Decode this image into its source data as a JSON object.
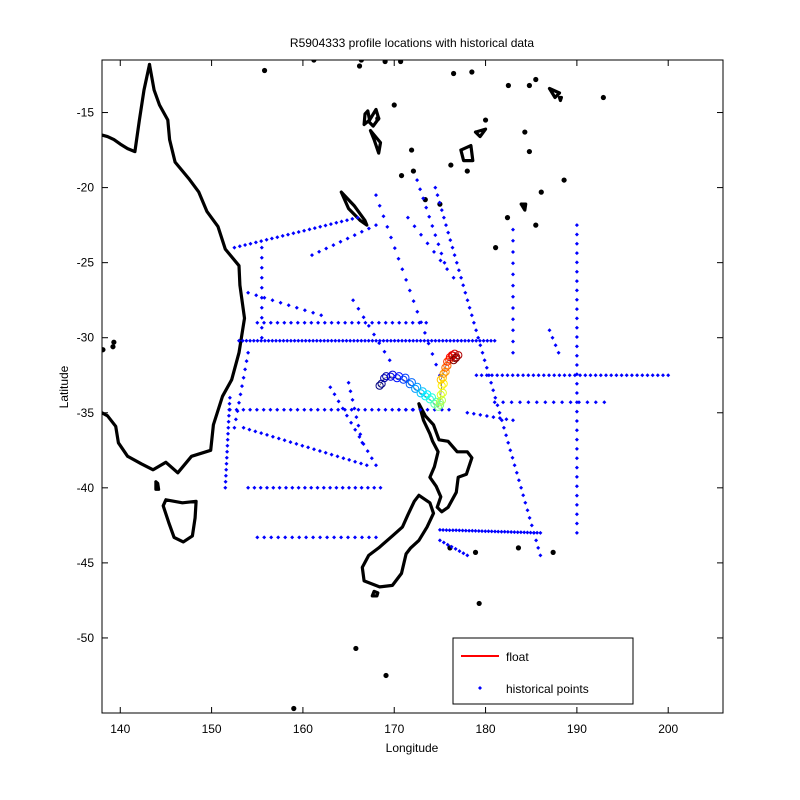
{
  "chart_data": {
    "type": "scatter",
    "title": "R5904333 profile locations with historical data",
    "xlabel": "Longitude",
    "ylabel": "Latitude",
    "xlim": [
      138,
      206
    ],
    "ylim": [
      -55,
      -11.5
    ],
    "xticks": [
      140,
      150,
      160,
      170,
      180,
      190,
      200
    ],
    "yticks": [
      -15,
      -20,
      -25,
      -30,
      -35,
      -40,
      -45,
      -50
    ],
    "grid": false,
    "legend": {
      "placement": "bottom-right",
      "entries": [
        "float",
        "historical points"
      ]
    },
    "colors": {
      "float_line": "#ff0000",
      "historical_points": "#0000ff",
      "coastline": "#000000"
    },
    "series": [
      {
        "name": "float",
        "path": [
          [
            168.4,
            -33.2
          ],
          [
            168.9,
            -32.7
          ],
          [
            169.6,
            -32.6
          ],
          [
            170.3,
            -32.7
          ],
          [
            171.0,
            -32.8
          ],
          [
            171.7,
            -33.1
          ],
          [
            172.3,
            -33.4
          ],
          [
            172.9,
            -33.7
          ],
          [
            173.4,
            -33.9
          ],
          [
            173.9,
            -34.1
          ],
          [
            174.4,
            -34.4
          ],
          [
            174.8,
            -34.6
          ],
          [
            175.0,
            -34.3
          ],
          [
            175.1,
            -33.8
          ],
          [
            175.2,
            -33.2
          ],
          [
            175.1,
            -32.8
          ],
          [
            175.4,
            -32.4
          ],
          [
            175.6,
            -32.0
          ],
          [
            175.8,
            -31.6
          ],
          [
            176.1,
            -31.3
          ],
          [
            176.4,
            -31.2
          ],
          [
            176.8,
            -31.3
          ],
          [
            176.5,
            -31.5
          ]
        ]
      },
      {
        "name": "historical points",
        "tracks": [
          {
            "from": [
              152.5,
              -24.0
            ],
            "to": [
              166.0,
              -22.0
            ],
            "n": 24
          },
          {
            "from": [
              153.0,
              -30.2
            ],
            "to": [
              181.0,
              -30.2
            ],
            "n": 70
          },
          {
            "from": [
              152.0,
              -34.8
            ],
            "to": [
              172.0,
              -34.8
            ],
            "n": 28
          },
          {
            "from": [
              153.5,
              -36.0
            ],
            "to": [
              167.0,
              -38.5
            ],
            "n": 22
          },
          {
            "from": [
              154.0,
              -40.0
            ],
            "to": [
              168.5,
              -40.0
            ],
            "n": 22
          },
          {
            "from": [
              155.0,
              -43.3
            ],
            "to": [
              168.0,
              -43.3
            ],
            "n": 18
          },
          {
            "from": [
              155.0,
              -29.0
            ],
            "to": [
              173.5,
              -29.0
            ],
            "n": 26
          },
          {
            "from": [
              163.0,
              -33.3
            ],
            "to": [
              168.0,
              -38.5
            ],
            "n": 12
          },
          {
            "from": [
              175.0,
              -42.8
            ],
            "to": [
              186.0,
              -43.0
            ],
            "n": 32
          },
          {
            "from": [
              179.0,
              -32.5
            ],
            "to": [
              200.0,
              -32.5
            ],
            "n": 38
          },
          {
            "from": [
              181.0,
              -34.3
            ],
            "to": [
              193.0,
              -34.3
            ],
            "n": 14
          },
          {
            "from": [
              190.0,
              -22.5
            ],
            "to": [
              190.0,
              -43.0
            ],
            "n": 34
          },
          {
            "from": [
              183.0,
              -22.8
            ],
            "to": [
              183.0,
              -31.0
            ],
            "n": 12
          },
          {
            "from": [
              174.5,
              -20.0
            ],
            "to": [
              186.0,
              -44.5
            ],
            "n": 50
          },
          {
            "from": [
              176.5,
              -26.0
            ],
            "to": [
              171.5,
              -22.0
            ],
            "n": 8
          },
          {
            "from": [
              161.0,
              -24.5
            ],
            "to": [
              168.0,
              -22.5
            ],
            "n": 10
          },
          {
            "from": [
              154.0,
              -27.0
            ],
            "to": [
              162.0,
              -28.5
            ],
            "n": 10
          },
          {
            "from": [
              168.0,
              -20.5
            ],
            "to": [
              175.0,
              -32.5
            ],
            "n": 18
          },
          {
            "from": [
              165.5,
              -27.5
            ],
            "to": [
              169.5,
              -31.5
            ],
            "n": 8
          },
          {
            "from": [
              152.0,
              -34.0
            ],
            "to": [
              151.5,
              -40.0
            ],
            "n": 16
          },
          {
            "from": [
              154.0,
              -31.0
            ],
            "to": [
              152.5,
              -36.0
            ],
            "n": 10
          },
          {
            "from": [
              175.0,
              -43.5
            ],
            "to": [
              178.0,
              -44.5
            ],
            "n": 8
          },
          {
            "from": [
              172.5,
              -19.5
            ],
            "to": [
              175.5,
              -25.0
            ],
            "n": 10
          },
          {
            "from": [
              165.0,
              -33.0
            ],
            "to": [
              166.5,
              -37.0
            ],
            "n": 8
          },
          {
            "from": [
              178.0,
              -35.0
            ],
            "to": [
              183.0,
              -35.5
            ],
            "n": 8
          },
          {
            "from": [
              187.0,
              -29.5
            ],
            "to": [
              188.0,
              -31.0
            ],
            "n": 4
          },
          {
            "from": [
              155.5,
              -24.0
            ],
            "to": [
              155.5,
              -30.0
            ],
            "n": 10
          },
          {
            "from": [
              170.5,
              -34.8
            ],
            "to": [
              176.0,
              -34.8
            ],
            "n": 8
          }
        ]
      }
    ],
    "coastlines": [
      [
        [
          143.2,
          -11.8
        ],
        [
          142.6,
          -13.5
        ],
        [
          142.1,
          -15.5
        ],
        [
          141.6,
          -17.6
        ],
        [
          140.8,
          -17.4
        ],
        [
          140.0,
          -17.1
        ],
        [
          139.3,
          -16.8
        ],
        [
          138.6,
          -16.6
        ],
        [
          138.0,
          -16.5
        ]
      ],
      [
        [
          143.2,
          -11.8
        ],
        [
          143.7,
          -13.5
        ],
        [
          144.3,
          -14.5
        ],
        [
          145.2,
          -15.5
        ],
        [
          145.4,
          -16.8
        ],
        [
          146.0,
          -18.3
        ],
        [
          147.5,
          -19.4
        ],
        [
          148.6,
          -20.3
        ],
        [
          149.5,
          -21.6
        ],
        [
          150.7,
          -22.6
        ],
        [
          151.5,
          -24.1
        ],
        [
          153.0,
          -25.2
        ],
        [
          153.1,
          -26.5
        ],
        [
          153.6,
          -28.7
        ],
        [
          153.0,
          -31.0
        ],
        [
          152.2,
          -32.8
        ],
        [
          151.2,
          -33.9
        ],
        [
          150.2,
          -35.8
        ],
        [
          149.9,
          -37.5
        ],
        [
          147.8,
          -37.9
        ],
        [
          146.3,
          -39.0
        ],
        [
          145.0,
          -38.3
        ],
        [
          143.6,
          -38.8
        ],
        [
          142.3,
          -38.4
        ],
        [
          140.8,
          -37.9
        ],
        [
          139.8,
          -37.0
        ],
        [
          139.5,
          -35.9
        ],
        [
          138.6,
          -35.2
        ],
        [
          138.0,
          -35.0
        ]
      ],
      [
        [
          145.0,
          -40.8
        ],
        [
          146.8,
          -41.0
        ],
        [
          148.3,
          -40.9
        ],
        [
          148.2,
          -42.0
        ],
        [
          147.9,
          -43.2
        ],
        [
          146.9,
          -43.6
        ],
        [
          145.9,
          -43.3
        ],
        [
          145.3,
          -42.3
        ],
        [
          144.7,
          -41.2
        ],
        [
          145.0,
          -40.8
        ]
      ],
      [
        [
          143.9,
          -39.6
        ],
        [
          144.1,
          -39.7
        ],
        [
          144.2,
          -40.1
        ],
        [
          143.9,
          -40.1
        ],
        [
          143.9,
          -39.6
        ]
      ],
      [
        [
          172.7,
          -34.4
        ],
        [
          173.4,
          -35.2
        ],
        [
          174.3,
          -35.8
        ],
        [
          174.9,
          -36.8
        ],
        [
          175.9,
          -36.9
        ],
        [
          176.9,
          -37.6
        ],
        [
          178.0,
          -37.6
        ],
        [
          178.5,
          -38.0
        ],
        [
          177.9,
          -39.1
        ],
        [
          177.0,
          -39.3
        ],
        [
          176.8,
          -40.3
        ],
        [
          175.9,
          -41.3
        ],
        [
          175.2,
          -41.6
        ],
        [
          174.7,
          -41.3
        ],
        [
          175.1,
          -40.6
        ],
        [
          174.6,
          -39.9
        ],
        [
          173.9,
          -39.3
        ],
        [
          174.4,
          -38.6
        ],
        [
          174.8,
          -37.6
        ],
        [
          174.2,
          -36.9
        ],
        [
          173.9,
          -36.4
        ],
        [
          173.2,
          -35.5
        ],
        [
          172.7,
          -34.4
        ]
      ],
      [
        [
          172.7,
          -40.5
        ],
        [
          173.9,
          -41.0
        ],
        [
          174.3,
          -41.7
        ],
        [
          173.6,
          -42.6
        ],
        [
          172.7,
          -43.5
        ],
        [
          171.8,
          -44.0
        ],
        [
          171.3,
          -44.4
        ],
        [
          170.8,
          -45.7
        ],
        [
          169.8,
          -46.5
        ],
        [
          168.4,
          -46.6
        ],
        [
          166.7,
          -46.2
        ],
        [
          166.5,
          -45.3
        ],
        [
          167.2,
          -44.5
        ],
        [
          168.3,
          -44.0
        ],
        [
          169.8,
          -43.2
        ],
        [
          170.9,
          -42.6
        ],
        [
          171.5,
          -41.8
        ],
        [
          172.2,
          -40.9
        ],
        [
          172.7,
          -40.5
        ]
      ],
      [
        [
          167.8,
          -46.9
        ],
        [
          168.2,
          -47.0
        ],
        [
          168.1,
          -47.2
        ],
        [
          167.6,
          -47.2
        ],
        [
          167.8,
          -46.9
        ]
      ],
      [
        [
          164.2,
          -20.3
        ],
        [
          165.6,
          -21.2
        ],
        [
          166.8,
          -22.2
        ],
        [
          167.0,
          -22.5
        ],
        [
          166.3,
          -22.2
        ],
        [
          165.0,
          -21.4
        ],
        [
          164.2,
          -20.3
        ]
      ],
      [
        [
          177.3,
          -17.5
        ],
        [
          178.4,
          -17.2
        ],
        [
          178.6,
          -18.2
        ],
        [
          177.6,
          -18.2
        ],
        [
          177.3,
          -17.5
        ]
      ],
      [
        [
          178.9,
          -16.3
        ],
        [
          180.0,
          -16.1
        ],
        [
          179.4,
          -16.6
        ],
        [
          178.9,
          -16.3
        ]
      ],
      [
        [
          168.0,
          -14.8
        ],
        [
          168.3,
          -15.4
        ],
        [
          167.7,
          -15.9
        ],
        [
          167.2,
          -15.6
        ],
        [
          168.0,
          -14.8
        ]
      ],
      [
        [
          167.1,
          -14.9
        ],
        [
          167.3,
          -15.5
        ],
        [
          166.7,
          -15.8
        ],
        [
          166.8,
          -15.1
        ],
        [
          167.1,
          -14.9
        ]
      ],
      [
        [
          167.4,
          -16.2
        ],
        [
          168.5,
          -17.0
        ],
        [
          168.3,
          -17.7
        ],
        [
          167.8,
          -16.8
        ],
        [
          167.4,
          -16.2
        ]
      ],
      [
        [
          187.0,
          -13.4
        ],
        [
          188.1,
          -13.7
        ],
        [
          187.6,
          -14.0
        ],
        [
          187.0,
          -13.4
        ]
      ],
      [
        [
          188.1,
          -14.0
        ],
        [
          188.3,
          -14.0
        ],
        [
          188.2,
          -14.2
        ],
        [
          188.1,
          -14.0
        ]
      ],
      [
        [
          183.9,
          -21.1
        ],
        [
          184.4,
          -21.1
        ],
        [
          184.3,
          -21.5
        ],
        [
          183.9,
          -21.1
        ]
      ]
    ],
    "islands": [
      [
        138.1,
        -30.8
      ],
      [
        139.3,
        -30.3
      ],
      [
        139.2,
        -30.6
      ],
      [
        161.2,
        -11.5
      ],
      [
        166.4,
        -11.5
      ],
      [
        169.0,
        -11.6
      ],
      [
        170.7,
        -11.6
      ],
      [
        172.1,
        -18.9
      ],
      [
        173.4,
        -20.8
      ],
      [
        170.0,
        -14.5
      ],
      [
        171.9,
        -17.5
      ],
      [
        176.5,
        -12.4
      ],
      [
        178.5,
        -12.3
      ],
      [
        180.0,
        -15.5
      ],
      [
        178.0,
        -18.9
      ],
      [
        184.8,
        -17.6
      ],
      [
        184.3,
        -16.3
      ],
      [
        188.6,
        -19.5
      ],
      [
        185.5,
        -22.5
      ],
      [
        186.1,
        -20.3
      ],
      [
        185.5,
        -12.8
      ],
      [
        184.8,
        -13.2
      ],
      [
        182.5,
        -13.2
      ],
      [
        192.9,
        -14.0
      ],
      [
        181.1,
        -24.0
      ],
      [
        182.4,
        -22.0
      ],
      [
        187.4,
        -44.3
      ],
      [
        176.1,
        -44.0
      ],
      [
        178.9,
        -44.3
      ],
      [
        183.6,
        -44.0
      ],
      [
        165.8,
        -50.7
      ],
      [
        169.1,
        -52.5
      ],
      [
        159.0,
        -54.7
      ],
      [
        179.3,
        -47.7
      ],
      [
        155.8,
        -12.2
      ],
      [
        166.2,
        -11.9
      ],
      [
        168.2,
        -15.4
      ],
      [
        170.8,
        -19.2
      ],
      [
        176.2,
        -18.5
      ],
      [
        175.0,
        -21.1
      ]
    ]
  }
}
